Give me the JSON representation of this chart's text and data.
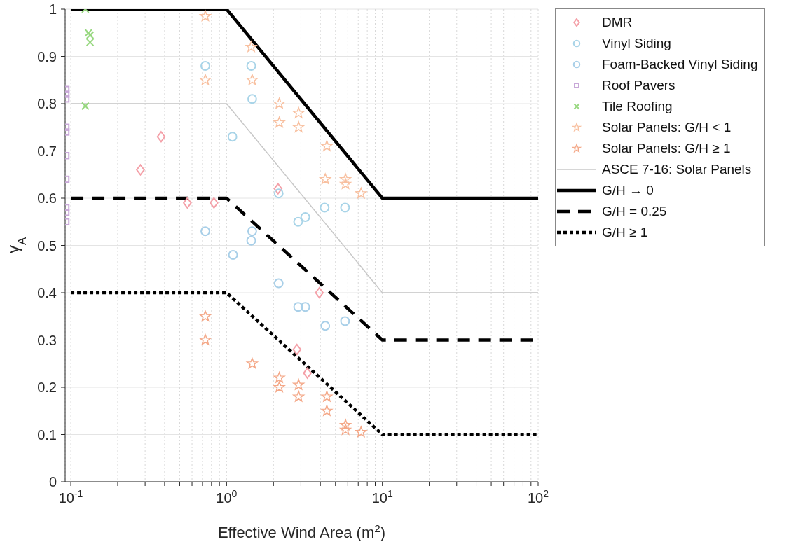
{
  "chart_data": {
    "type": "scatter",
    "xlabel": "Effective Wind Area (m$^{2}$)",
    "ylabel": "γ$_{A}$",
    "log": "x",
    "grid": true,
    "legend": "top right",
    "xlim": [
      0.092,
      100
    ],
    "ylim": [
      0,
      1
    ],
    "xticks": [
      {
        "value": 0.1,
        "label": "10$^{-1}$"
      },
      {
        "value": 0.2,
        "label": null
      },
      {
        "value": 0.3,
        "label": null
      },
      {
        "value": 0.4,
        "label": null
      },
      {
        "value": 0.5,
        "label": null
      },
      {
        "value": 0.6,
        "label": null
      },
      {
        "value": 0.7,
        "label": null
      },
      {
        "value": 0.8,
        "label": null
      },
      {
        "value": 0.9,
        "label": null
      },
      {
        "value": 1,
        "label": "10$^{0}$"
      },
      {
        "value": 2,
        "label": null
      },
      {
        "value": 3,
        "label": null
      },
      {
        "value": 4,
        "label": null
      },
      {
        "value": 5,
        "label": null
      },
      {
        "value": 6,
        "label": null
      },
      {
        "value": 7,
        "label": null
      },
      {
        "value": 8,
        "label": null
      },
      {
        "value": 9,
        "label": null
      },
      {
        "value": 10,
        "label": "10$^{1}$"
      },
      {
        "value": 20,
        "label": null
      },
      {
        "value": 30,
        "label": null
      },
      {
        "value": 40,
        "label": null
      },
      {
        "value": 50,
        "label": null
      },
      {
        "value": 60,
        "label": null
      },
      {
        "value": 70,
        "label": null
      },
      {
        "value": 80,
        "label": null
      },
      {
        "value": 90,
        "label": null
      },
      {
        "value": 100,
        "label": "10$^{2}$"
      }
    ],
    "yticks": [
      0,
      0.1,
      0.2,
      0.3,
      0.4,
      0.5,
      0.6,
      0.7,
      0.8,
      0.9,
      1
    ],
    "series": [
      {
        "name": "DMR",
        "marker": "diamond",
        "color": "#f4a0a8",
        "x": [
          0.28,
          0.38,
          0.56,
          0.83,
          2.14,
          3.94,
          2.83,
          3.3
        ],
        "values": [
          0.66,
          0.73,
          0.59,
          0.59,
          0.62,
          0.4,
          0.28,
          0.23
        ]
      },
      {
        "name": "Vinyl Siding",
        "marker": "circle",
        "color": "#a8d4e8",
        "x": [
          0.73,
          1.09,
          1.44,
          1.46,
          2.16,
          2.88,
          3.2,
          4.26,
          5.76
        ],
        "values": [
          0.88,
          0.73,
          0.88,
          0.81,
          0.61,
          0.55,
          0.56,
          0.58,
          0.58
        ]
      },
      {
        "name": "Foam-Backed Vinyl Siding",
        "marker": "circle",
        "color": "#a8cfe8",
        "x": [
          0.73,
          1.1,
          1.46,
          1.44,
          2.16,
          2.88,
          3.2,
          4.3,
          5.76
        ],
        "values": [
          0.53,
          0.48,
          0.53,
          0.51,
          0.42,
          0.37,
          0.37,
          0.33,
          0.34
        ]
      },
      {
        "name": "Roof Pavers",
        "marker": "square",
        "color": "#c8a8d8",
        "x": [
          0.093,
          0.093,
          0.093,
          0.093,
          0.093,
          0.093,
          0.093,
          0.093,
          0.093,
          0.093
        ],
        "values": [
          0.83,
          0.82,
          0.81,
          0.75,
          0.74,
          0.69,
          0.64,
          0.58,
          0.57,
          0.55
        ]
      },
      {
        "name": "Tile Roofing",
        "marker": "cross",
        "color": "#98d880",
        "x": [
          0.124,
          0.13,
          0.133,
          0.133,
          0.124
        ],
        "values": [
          1.0,
          0.95,
          0.945,
          0.93,
          0.795
        ]
      },
      {
        "name": "Solar Panels: G/H < 1",
        "marker": "star",
        "color": "#f8c0a0",
        "x": [
          0.73,
          0.73,
          1.44,
          1.46,
          2.18,
          2.18,
          2.9,
          2.9,
          4.4,
          4.3,
          5.8,
          5.8,
          7.3
        ],
        "values": [
          0.985,
          0.85,
          0.92,
          0.85,
          0.8,
          0.76,
          0.78,
          0.75,
          0.71,
          0.64,
          0.64,
          0.63,
          0.61
        ]
      },
      {
        "name": "Solar Panels: G/H ≥ 1",
        "marker": "star",
        "color": "#f4a888",
        "x": [
          0.73,
          0.73,
          1.46,
          2.18,
          2.18,
          2.9,
          2.9,
          4.4,
          4.4,
          5.8,
          5.8,
          7.3
        ],
        "values": [
          0.35,
          0.3,
          0.25,
          0.22,
          0.2,
          0.205,
          0.18,
          0.18,
          0.15,
          0.12,
          0.11,
          0.105
        ]
      },
      {
        "name": "ASCE 7-16: Solar Panels",
        "type": "line",
        "marker": "none",
        "line_style": "solid",
        "color": "#c8c8c8",
        "x": [
          0.1,
          1,
          10,
          100
        ],
        "values": [
          0.8,
          0.8,
          0.4,
          0.4
        ]
      },
      {
        "name": "G/H → 0",
        "type": "line",
        "marker": "none",
        "line_style": "solid",
        "color": "#000000",
        "x": [
          0.1,
          1,
          10,
          100
        ],
        "values": [
          1,
          1,
          0.6,
          0.6
        ]
      },
      {
        "name": "G/H = 0.25",
        "type": "line",
        "marker": "none",
        "line_style": "dashed",
        "color": "#000000",
        "x": [
          0.1,
          1,
          10,
          100
        ],
        "values": [
          0.6,
          0.6,
          0.3,
          0.3
        ]
      },
      {
        "name": "G/H ≥ 1",
        "type": "line",
        "marker": "none",
        "line_style": "dotted",
        "color": "#000000",
        "x": [
          0.1,
          1,
          10,
          100
        ],
        "values": [
          0.4,
          0.4,
          0.1,
          0.1
        ]
      }
    ]
  }
}
